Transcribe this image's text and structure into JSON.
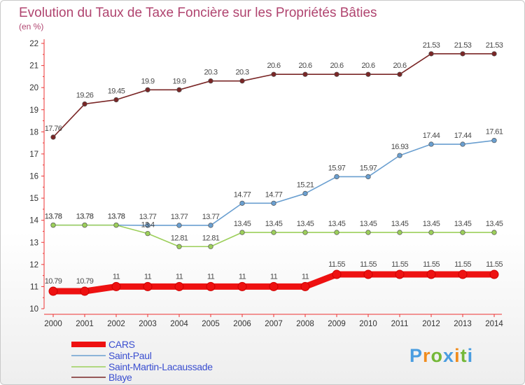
{
  "chart_data": {
    "type": "line",
    "title": "Evolution du Taux de Taxe Foncière sur les Propriétés Bâties",
    "subtitle": "(en %)",
    "x": [
      "2000",
      "2001",
      "2002",
      "2003",
      "2004",
      "2005",
      "2006",
      "2007",
      "2008",
      "2009",
      "2010",
      "2011",
      "2012",
      "2013",
      "2014"
    ],
    "yticks": [
      "10",
      "11",
      "12",
      "13",
      "14",
      "15",
      "16",
      "17",
      "18",
      "19",
      "20",
      "21",
      "22"
    ],
    "ylim": [
      10,
      22
    ],
    "grid": false,
    "legend_position": "bottom-left",
    "series": [
      {
        "name": "CARS",
        "color": "#ee1111",
        "values": [
          10.79,
          10.79,
          11,
          11,
          11,
          11,
          11,
          11,
          11,
          11.55,
          11.55,
          11.55,
          11.55,
          11.55,
          11.55
        ],
        "labels": [
          "10.79",
          "10.79",
          "11",
          "11",
          "11",
          "11",
          "11",
          "11",
          "11",
          "11.55",
          "11.55",
          "11.55",
          "11.55",
          "11.55",
          "11.55"
        ]
      },
      {
        "name": "Saint-Paul",
        "color": "#6a9fd0",
        "values": [
          13.78,
          13.78,
          13.78,
          13.77,
          13.77,
          13.77,
          14.77,
          14.77,
          15.21,
          15.97,
          15.97,
          16.93,
          17.44,
          17.44,
          17.61
        ],
        "labels": [
          "13.78",
          "13.78",
          "13.78",
          "13.77",
          "13.77",
          "13.77",
          "14.77",
          "14.77",
          "15.21",
          "15.97",
          "15.97",
          "16.93",
          "17.44",
          "17.44",
          "17.61"
        ]
      },
      {
        "name": "Saint-Martin-Lacaussade",
        "color": "#9ccf5a",
        "values": [
          13.78,
          13.78,
          13.78,
          13.4,
          12.81,
          12.81,
          13.45,
          13.45,
          13.45,
          13.45,
          13.45,
          13.45,
          13.45,
          13.45,
          13.45
        ],
        "labels": [
          "13.78",
          "13.78",
          "13.78",
          "13.4",
          "12.81",
          "12.81",
          "13.45",
          "13.45",
          "13.45",
          "13.45",
          "13.45",
          "13.45",
          "13.45",
          "13.45",
          "13.45"
        ]
      },
      {
        "name": "Blaye",
        "color": "#7a2626",
        "values": [
          17.76,
          19.26,
          19.45,
          19.9,
          19.9,
          20.3,
          20.3,
          20.6,
          20.6,
          20.6,
          20.6,
          20.6,
          21.53,
          21.53,
          21.53
        ],
        "labels": [
          "17.76",
          "19.26",
          "19.45",
          "19.9",
          "19.9",
          "20.3",
          "20.3",
          "20.6",
          "20.6",
          "20.6",
          "20.6",
          "20.6",
          "21.53",
          "21.53",
          "21.53"
        ]
      }
    ]
  },
  "logo": {
    "text": "Proxiti",
    "colors": [
      "#4a9de0",
      "#f08c1e",
      "#74b838",
      "#4a9de0",
      "#f08c1e",
      "#74b838",
      "#4a9de0"
    ]
  }
}
